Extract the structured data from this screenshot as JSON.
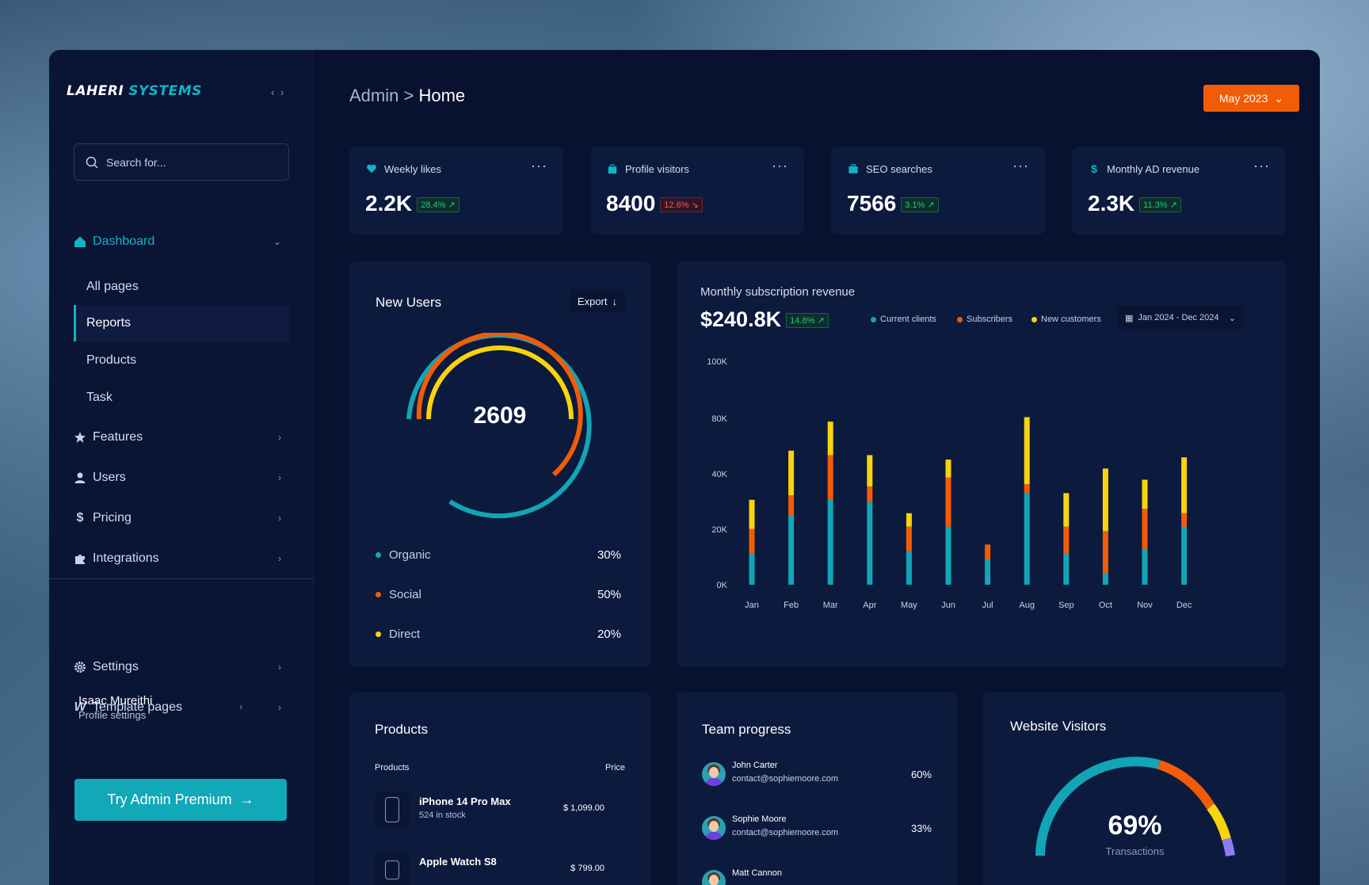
{
  "brand": {
    "part1": "LAHERI",
    "part2": "SYSTEMS",
    "collapse": "‹ ›"
  },
  "search": {
    "placeholder": "Search for..."
  },
  "sidebar": {
    "dashboard": "Dashboard",
    "sub_items": [
      "All pages",
      "Reports",
      "Products",
      "Task"
    ],
    "items": [
      "Features",
      "Users",
      "Pricing",
      "Integrations"
    ],
    "bottom_items": [
      "Settings",
      "Template pages"
    ],
    "profile": {
      "name": "Isaac Mureithi",
      "sub": "Profile settings"
    },
    "premium": "Try Admin Premium"
  },
  "breadcrumb": {
    "root": "Admin",
    "sep": ">",
    "current": "Home"
  },
  "month_button": "May 2023",
  "kpis": [
    {
      "title": "Weekly likes",
      "value": "2.2K",
      "delta": "28.4%",
      "trend": "up",
      "icon": "heart-icon"
    },
    {
      "title": "Profile visitors",
      "value": "8400",
      "delta": "12.6%",
      "trend": "down",
      "icon": "bag-icon"
    },
    {
      "title": "SEO searches",
      "value": "7566",
      "delta": "3.1%",
      "trend": "up",
      "icon": "briefcase-icon"
    },
    {
      "title": "Monthly AD revenue",
      "value": "2.3K",
      "delta": "11.3%",
      "trend": "up",
      "icon": "dollar-icon"
    }
  ],
  "new_users": {
    "title": "New Users",
    "export": "Export",
    "total": "2609",
    "legend": [
      {
        "label": "Organic",
        "pct": "30%",
        "color": "#12a5b5"
      },
      {
        "label": "Social",
        "pct": "50%",
        "color": "#f25c05"
      },
      {
        "label": "Direct",
        "pct": "20%",
        "color": "#f7d40c"
      }
    ]
  },
  "revenue": {
    "title": "Monthly subscription revenue",
    "value": "$240.8K",
    "delta": "14.8%",
    "legend": [
      "Current clients",
      "Subscribers",
      "New customers"
    ],
    "date_range": "Jan 2024 - Dec 2024"
  },
  "chart_data": {
    "type": "bar",
    "stacked": true,
    "categories": [
      "Jan",
      "Feb",
      "Mar",
      "Apr",
      "May",
      "Jun",
      "Jul",
      "Aug",
      "Sep",
      "Oct",
      "Nov",
      "Dec"
    ],
    "y_ticks": [
      "0K",
      "20K",
      "40K",
      "80K",
      "100K"
    ],
    "ylim": [
      0,
      100
    ],
    "series": [
      {
        "name": "Current clients",
        "color": "#12a5b5",
        "values": [
          14,
          31,
          38,
          37,
          15,
          26,
          11,
          41,
          14,
          5,
          16,
          26
        ]
      },
      {
        "name": "Subscribers",
        "color": "#f25c05",
        "values": [
          11,
          9,
          20,
          7,
          11,
          22,
          7,
          4,
          12,
          19,
          18,
          6
        ]
      },
      {
        "name": "New customers",
        "color": "#f7d40c",
        "values": [
          13,
          20,
          15,
          14,
          6,
          8,
          0,
          30,
          15,
          28,
          13,
          25
        ]
      }
    ]
  },
  "products": {
    "title": "Products",
    "col_product": "Products",
    "col_price": "Price",
    "rows": [
      {
        "name": "iPhone 14 Pro Max",
        "stock": "524 in stock",
        "price": "$ 1,099.00"
      },
      {
        "name": "Apple Watch S8",
        "stock": "",
        "price": "$ 799.00"
      }
    ]
  },
  "team": {
    "title": "Team progress",
    "members": [
      {
        "name": "John Carter",
        "email": "contact@sophiemoore.com",
        "pct": "60%"
      },
      {
        "name": "Sophie Moore",
        "email": "contact@sophiemoore.com",
        "pct": "33%"
      },
      {
        "name": "Matt Cannon",
        "email": "",
        "pct": ""
      }
    ]
  },
  "visitors": {
    "title": "Website Visitors",
    "value": "69%",
    "label": "Transactions"
  },
  "colors": {
    "accent": "#12b3c4",
    "orange": "#f25c05",
    "yellow": "#f7d40c",
    "panel": "#0c1a3e"
  }
}
